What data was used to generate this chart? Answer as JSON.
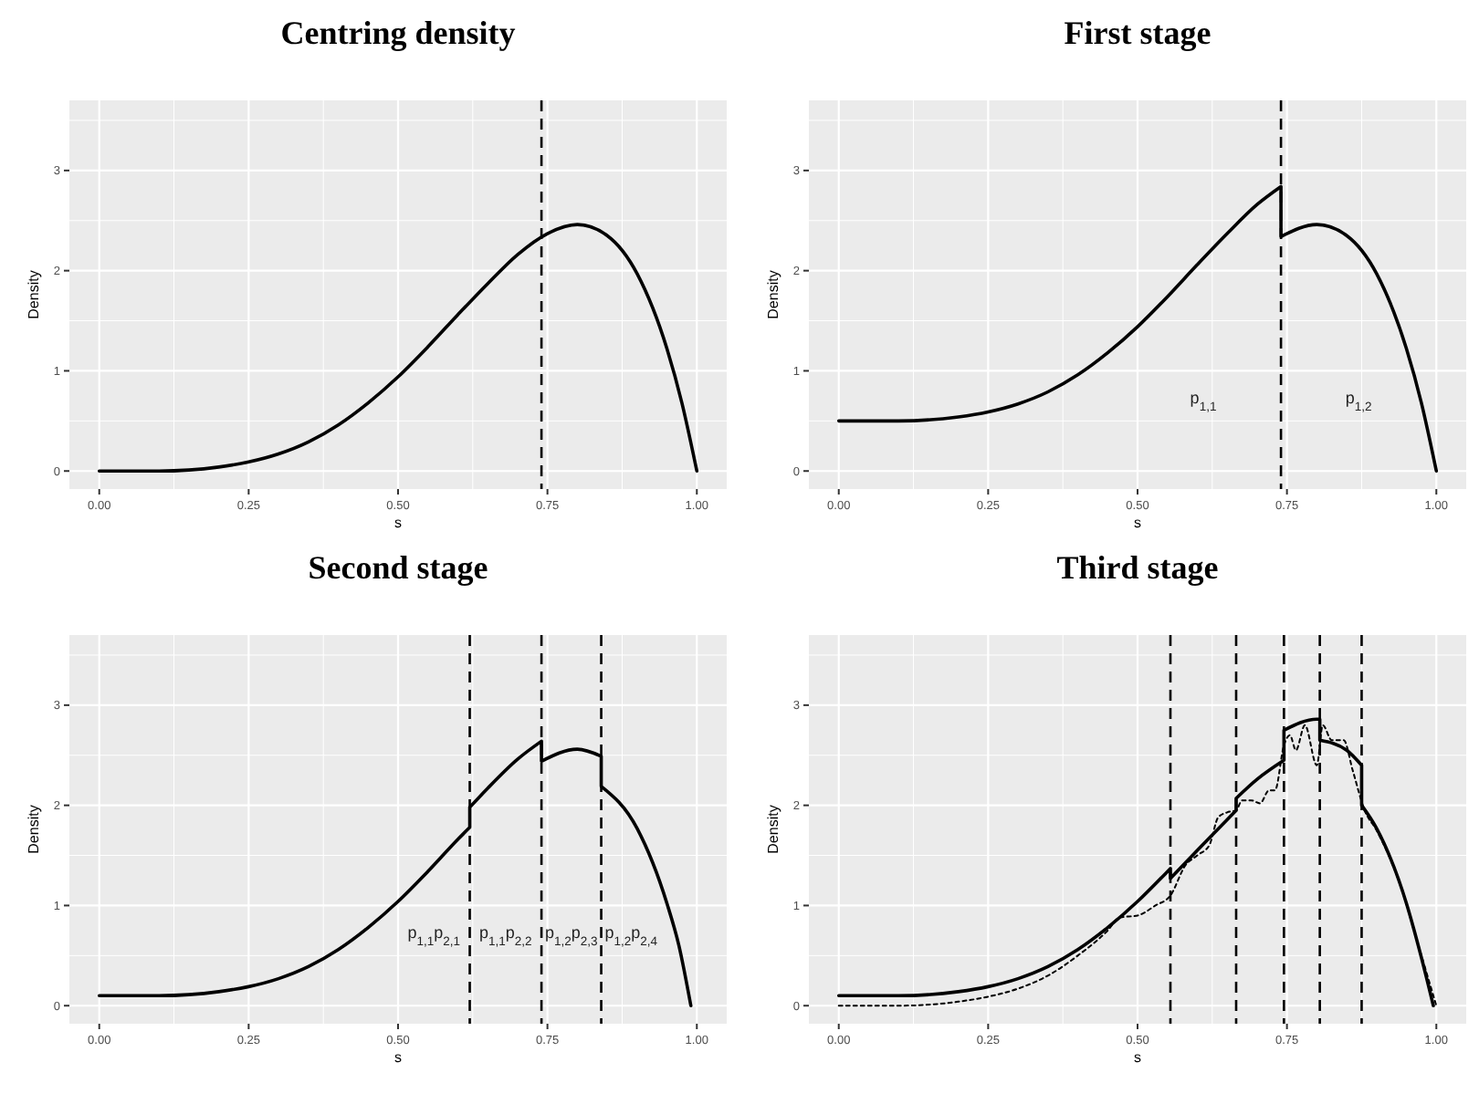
{
  "chart_data": [
    {
      "type": "line",
      "title": "Centring density",
      "xlabel": "s",
      "ylabel": "Density",
      "xlim": [
        -0.05,
        1.05
      ],
      "ylim": [
        -0.18,
        3.7
      ],
      "xticks": [
        {
          "value": 0,
          "label": "0.00"
        },
        {
          "value": 0.25,
          "label": "0.25"
        },
        {
          "value": 0.5,
          "label": "0.50"
        },
        {
          "value": 0.75,
          "label": "0.75"
        },
        {
          "value": 1,
          "label": "1.00"
        }
      ],
      "yticks": [
        0,
        1,
        2,
        3
      ],
      "grid": true,
      "ref_lines": [
        {
          "axis": "x",
          "value": 0.74,
          "line_style": "dashed",
          "color": "#000000"
        }
      ],
      "series": [
        {
          "color": "#000000",
          "line_style": "solid",
          "x": [
            0,
            0.1,
            0.2,
            0.25,
            0.3,
            0.35,
            0.4,
            0.45,
            0.5,
            0.55,
            0.6,
            0.65,
            0.7,
            0.75,
            0.8,
            0.85,
            0.9,
            0.95,
            0.975,
            1
          ],
          "values": [
            0,
            0,
            0.04,
            0.09,
            0.17,
            0.29,
            0.46,
            0.68,
            0.94,
            1.24,
            1.56,
            1.87,
            2.16,
            2.37,
            2.46,
            2.35,
            1.97,
            1.22,
            0.68,
            0
          ]
        }
      ]
    },
    {
      "type": "line",
      "title": "First stage",
      "xlabel": "s",
      "ylabel": "Density",
      "xlim": [
        -0.05,
        1.05
      ],
      "ylim": [
        -0.18,
        3.7
      ],
      "xticks": [
        {
          "value": 0,
          "label": "0.00"
        },
        {
          "value": 0.25,
          "label": "0.25"
        },
        {
          "value": 0.5,
          "label": "0.50"
        },
        {
          "value": 0.75,
          "label": "0.75"
        },
        {
          "value": 1,
          "label": "1.00"
        }
      ],
      "yticks": [
        0,
        1,
        2,
        3
      ],
      "grid": true,
      "ref_lines": [
        {
          "axis": "x",
          "value": 0.74,
          "line_style": "dashed",
          "color": "#000000"
        }
      ],
      "annotations": [
        "p$_{1,1}$",
        "p$_{1,2}$"
      ],
      "series": [
        {
          "color": "#000000",
          "line_style": "solid",
          "x": [
            0,
            0.1,
            0.2,
            0.25,
            0.3,
            0.35,
            0.4,
            0.45,
            0.5,
            0.55,
            0.6,
            0.65,
            0.7,
            0.74,
            0.74,
            0.8,
            0.85,
            0.9,
            0.95,
            0.975,
            1
          ],
          "values": [
            0.5,
            0.5,
            0.54,
            0.59,
            0.67,
            0.79,
            0.96,
            1.18,
            1.44,
            1.74,
            2.06,
            2.37,
            2.66,
            2.84,
            2.34,
            2.46,
            2.35,
            1.97,
            1.22,
            0.68,
            0
          ]
        }
      ]
    },
    {
      "type": "line",
      "title": "Second stage",
      "xlabel": "s",
      "ylabel": "Density",
      "xlim": [
        -0.05,
        1.05
      ],
      "ylim": [
        -0.18,
        3.7
      ],
      "xticks": [
        {
          "value": 0,
          "label": "0.00"
        },
        {
          "value": 0.25,
          "label": "0.25"
        },
        {
          "value": 0.5,
          "label": "0.50"
        },
        {
          "value": 0.75,
          "label": "0.75"
        },
        {
          "value": 1,
          "label": "1.00"
        }
      ],
      "yticks": [
        0,
        1,
        2,
        3
      ],
      "grid": true,
      "ref_lines": [
        {
          "axis": "x",
          "value": 0.62,
          "line_style": "dashed",
          "color": "#000000"
        },
        {
          "axis": "x",
          "value": 0.74,
          "line_style": "dashed",
          "color": "#000000"
        },
        {
          "axis": "x",
          "value": 0.84,
          "line_style": "dashed",
          "color": "#000000"
        }
      ],
      "annotations": [
        "p$_{1,1}$p$_{2,1}$",
        "p$_{1,1}$p$_{2,2}$",
        "p$_{1,2}$p$_{2,3}$",
        "p$_{1,2}$p$_{2,4}$"
      ],
      "series": [
        {
          "color": "#000000",
          "line_style": "solid",
          "x": [
            0,
            0.1,
            0.2,
            0.25,
            0.3,
            0.35,
            0.4,
            0.45,
            0.5,
            0.55,
            0.6,
            0.62,
            0.62,
            0.65,
            0.7,
            0.74,
            0.74,
            0.8,
            0.84,
            0.84,
            0.9,
            0.95,
            0.97,
            0.99
          ],
          "values": [
            0.1,
            0.1,
            0.14,
            0.19,
            0.27,
            0.39,
            0.56,
            0.78,
            1.04,
            1.34,
            1.66,
            1.78,
            1.98,
            2.17,
            2.46,
            2.64,
            2.44,
            2.56,
            2.49,
            2.19,
            1.77,
            1.02,
            0.6,
            0
          ]
        }
      ]
    },
    {
      "type": "line",
      "title": "Third stage",
      "xlabel": "s",
      "ylabel": "Density",
      "xlim": [
        -0.05,
        1.05
      ],
      "ylim": [
        -0.18,
        3.7
      ],
      "xticks": [
        {
          "value": 0,
          "label": "0.00"
        },
        {
          "value": 0.25,
          "label": "0.25"
        },
        {
          "value": 0.5,
          "label": "0.50"
        },
        {
          "value": 0.75,
          "label": "0.75"
        },
        {
          "value": 1,
          "label": "1.00"
        }
      ],
      "yticks": [
        0,
        1,
        2,
        3
      ],
      "grid": true,
      "ref_lines": [
        {
          "axis": "x",
          "value": 0.555,
          "line_style": "dashed",
          "color": "#000000"
        },
        {
          "axis": "x",
          "value": 0.665,
          "line_style": "dashed",
          "color": "#000000"
        },
        {
          "axis": "x",
          "value": 0.745,
          "line_style": "dashed",
          "color": "#000000"
        },
        {
          "axis": "x",
          "value": 0.805,
          "line_style": "dashed",
          "color": "#000000"
        },
        {
          "axis": "x",
          "value": 0.875,
          "line_style": "dashed",
          "color": "#000000"
        }
      ],
      "series": [
        {
          "color": "#000000",
          "line_style": "solid",
          "x": [
            0,
            0.1,
            0.2,
            0.25,
            0.3,
            0.35,
            0.4,
            0.45,
            0.5,
            0.555,
            0.555,
            0.6,
            0.665,
            0.665,
            0.7,
            0.745,
            0.745,
            0.8,
            0.805,
            0.805,
            0.85,
            0.875,
            0.875,
            0.9,
            0.95,
            0.975,
            0.995
          ],
          "values": [
            0.1,
            0.1,
            0.14,
            0.19,
            0.27,
            0.39,
            0.56,
            0.78,
            1.04,
            1.37,
            1.27,
            1.55,
            1.95,
            2.07,
            2.26,
            2.45,
            2.75,
            2.86,
            2.86,
            2.65,
            2.55,
            2.4,
            2.0,
            1.77,
            1.02,
            0.48,
            0
          ]
        },
        {
          "color": "#000000",
          "line_style": "dotted",
          "x": [
            0,
            0.1,
            0.2,
            0.25,
            0.3,
            0.35,
            0.4,
            0.45,
            0.47,
            0.5,
            0.53,
            0.555,
            0.58,
            0.6,
            0.62,
            0.635,
            0.65,
            0.665,
            0.675,
            0.69,
            0.705,
            0.72,
            0.73,
            0.745,
            0.755,
            0.765,
            0.78,
            0.8,
            0.81,
            0.825,
            0.845,
            0.86,
            0.88,
            0.9,
            0.94,
            0.97,
            1
          ],
          "values": [
            0,
            0,
            0.04,
            0.09,
            0.17,
            0.3,
            0.5,
            0.75,
            0.88,
            0.9,
            1.0,
            1.1,
            1.4,
            1.5,
            1.6,
            1.88,
            1.93,
            1.95,
            2.05,
            2.05,
            2.02,
            2.15,
            2.15,
            2.6,
            2.7,
            2.55,
            2.8,
            2.4,
            2.8,
            2.65,
            2.65,
            2.35,
            1.95,
            1.75,
            1.2,
            0.6,
            0
          ]
        }
      ]
    }
  ]
}
